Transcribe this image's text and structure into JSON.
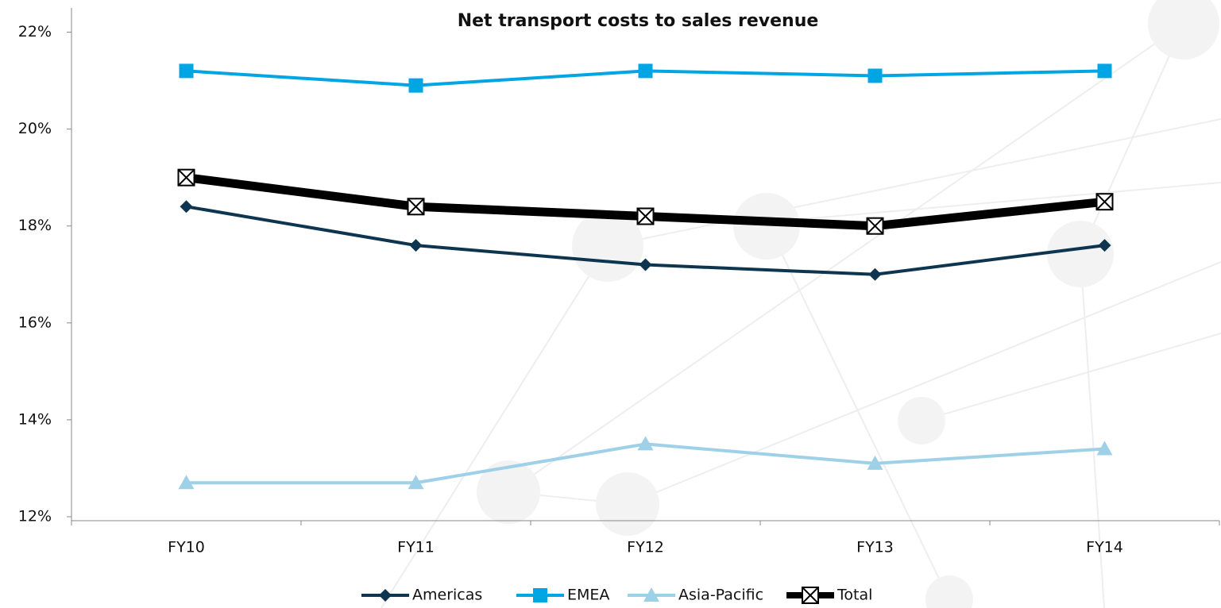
{
  "chart_data": {
    "type": "line",
    "title": "Net transport costs to sales revenue",
    "categories": [
      "FY10",
      "FY11",
      "FY12",
      "FY13",
      "FY14"
    ],
    "series": [
      {
        "name": "Americas",
        "color": "#0e3550",
        "values": [
          18.4,
          17.6,
          17.2,
          17.0,
          17.6
        ]
      },
      {
        "name": "EMEA",
        "color": "#00a6e4",
        "values": [
          21.2,
          20.9,
          21.2,
          21.1,
          21.2
        ]
      },
      {
        "name": "Asia-Pacific",
        "color": "#9ed0e8",
        "values": [
          12.7,
          12.7,
          13.5,
          13.1,
          13.4
        ]
      },
      {
        "name": "Total",
        "color": "#000000",
        "values": [
          19.0,
          18.4,
          18.2,
          18.0,
          18.5
        ]
      }
    ],
    "ylim": [
      12,
      22.5
    ],
    "yticks": [
      {
        "value": 12,
        "label": "12%"
      },
      {
        "value": 14,
        "label": "14%"
      },
      {
        "value": 16,
        "label": "16%"
      },
      {
        "value": 18,
        "label": "18%"
      },
      {
        "value": 20,
        "label": "20%"
      },
      {
        "value": 22,
        "label": "22%"
      }
    ],
    "legend": "bottom"
  }
}
